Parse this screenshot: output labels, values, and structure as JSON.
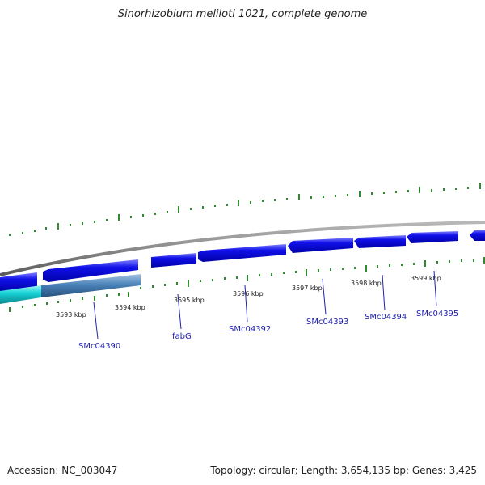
{
  "title": "Sinorhizobium meliloti 1021, complete genome",
  "accession": "Accession: NC_003047",
  "summary": "Topology: circular; Length: 3,654,135 bp; Genes: 3,425",
  "ticks": [
    "3593 kbp",
    "3594 kbp",
    "3595 kbp",
    "3596 kbp",
    "3597 kbp",
    "3598 kbp",
    "3599 kbp"
  ],
  "gene_labels": [
    "SMc04390",
    "fabG",
    "SMc04392",
    "SMc04393",
    "SMc04394",
    "SMc04395"
  ],
  "colors": {
    "backbone": "#8a8a8a",
    "gene_forward": "#1010e8",
    "gene_cyan": "#19d3d8",
    "gene_steel": "#4a82b8",
    "tick_mark": "#2e8b2e",
    "label_link": "#2020b0"
  }
}
